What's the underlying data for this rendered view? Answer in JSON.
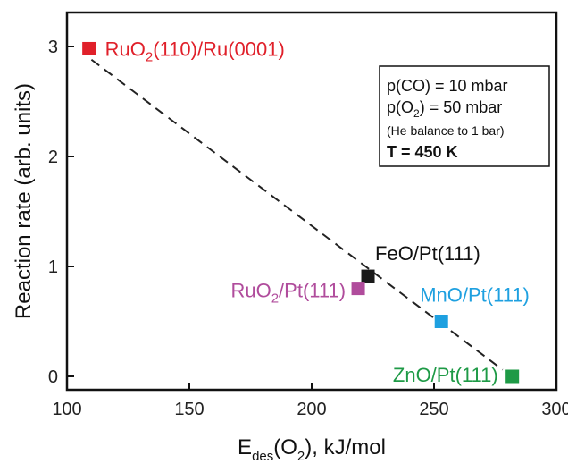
{
  "chart_data": {
    "type": "scatter",
    "xlabel": {
      "main": "E",
      "sub": "des",
      "rest1": "(O",
      "sub2": "2",
      "rest2": "), kJ/mol"
    },
    "ylabel": "Reaction rate (arb. units)",
    "xlim": [
      100,
      300
    ],
    "ylim": [
      -0.1,
      3.3
    ],
    "xticks": [
      "100",
      "150",
      "200",
      "250",
      "300"
    ],
    "yticks": [
      "0",
      "1",
      "2",
      "3"
    ],
    "grid": false,
    "points": [
      {
        "name": "RuO2(110)/Ru(0001)",
        "label_main": "RuO",
        "label_sub": "2",
        "label_rest": "(110)/Ru(0001)",
        "x": 109,
        "y": 2.98,
        "color": "#e0202a"
      },
      {
        "name": "FeO/Pt(111)",
        "label_main": "FeO/Pt(111)",
        "label_sub": "",
        "label_rest": "",
        "x": 223,
        "y": 0.91,
        "color": "#1a1a1a"
      },
      {
        "name": "RuO2/Pt(111)",
        "label_main": "RuO",
        "label_sub": "2",
        "label_rest": "/Pt(111)",
        "x": 219,
        "y": 0.8,
        "color": "#b04c9c"
      },
      {
        "name": "MnO/Pt(111)",
        "label_main": "MnO/Pt(111)",
        "label_sub": "",
        "label_rest": "",
        "x": 253,
        "y": 0.5,
        "color": "#1ea0e0"
      },
      {
        "name": "ZnO/Pt(111)",
        "label_main": "ZnO/Pt(111)",
        "label_sub": "",
        "label_rest": "",
        "x": 282,
        "y": 0.0,
        "color": "#1e9a46"
      }
    ],
    "fit_line": {
      "x": [
        110,
        278
      ],
      "y": [
        2.88,
        0.06
      ],
      "style": "dashed",
      "color": "#222222"
    },
    "conditions_box": {
      "line1": "p(CO) = 10 mbar",
      "line2_main": "p(O",
      "line2_sub": "2",
      "line2_rest": ") = 50 mbar",
      "line3": "(He balance to 1 bar)",
      "line4": "T = 450 K"
    }
  }
}
